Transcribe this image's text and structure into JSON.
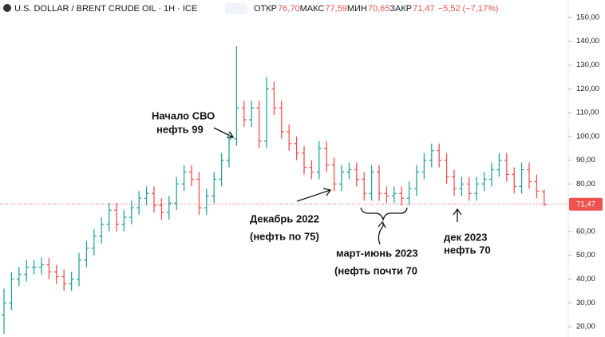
{
  "chart_data": {
    "type": "ohlc",
    "title": "U.S. DOLLAR / BRENT CRUDE OIL · 1Н · ICE",
    "header_fields": [
      {
        "label": "ОТКР",
        "value": "76,70"
      },
      {
        "label": "МАКС",
        "value": "77,59"
      },
      {
        "label": "МИН",
        "value": "70,65"
      },
      {
        "label": "ЗАКР",
        "value": "71,47"
      }
    ],
    "change": "−5,52 (−7,17%)",
    "up_color": "#26a69a",
    "down_color": "#ef5350",
    "last_label": "71,47",
    "ylim": [
      17,
      153
    ],
    "yticks": [
      {
        "value": 20,
        "label": "20,00"
      },
      {
        "value": 30,
        "label": "30,00"
      },
      {
        "value": 40,
        "label": "40,00"
      },
      {
        "value": 50,
        "label": "50,00"
      },
      {
        "value": 60,
        "label": "60,00"
      },
      {
        "value": 70,
        "label": "70,00"
      },
      {
        "value": 80,
        "label": "80,00"
      },
      {
        "value": 90,
        "label": "90,00"
      },
      {
        "value": 100,
        "label": "100,00"
      },
      {
        "value": 110,
        "label": "110,00"
      },
      {
        "value": 120,
        "label": "120,00"
      },
      {
        "value": 130,
        "label": "130,00"
      },
      {
        "value": 140,
        "label": "140,00"
      },
      {
        "value": 150,
        "label": "150,00"
      }
    ],
    "open": [
      25,
      30,
      40,
      42,
      45,
      45,
      46,
      43,
      41,
      38,
      40,
      48,
      53,
      58,
      63,
      69,
      63,
      66,
      70,
      74,
      76,
      71,
      68,
      72,
      80,
      85,
      82,
      70,
      75,
      82,
      90,
      99,
      112,
      107,
      112,
      98,
      120,
      112,
      102,
      97,
      93,
      87,
      85,
      95,
      88,
      80,
      85,
      86,
      82,
      76,
      85,
      76,
      75,
      76,
      74,
      78,
      85,
      90,
      94,
      90,
      83,
      78,
      80,
      76,
      80,
      82,
      86,
      90,
      84,
      79,
      86,
      81,
      76.7
    ],
    "high": [
      36,
      43,
      45,
      48,
      48,
      49,
      49,
      46,
      44,
      43,
      51,
      56,
      61,
      66,
      72,
      72,
      69,
      73,
      77,
      79,
      79,
      74,
      75,
      83,
      88,
      88,
      85,
      78,
      85,
      93,
      102,
      138,
      115,
      115,
      115,
      125,
      123,
      115,
      105,
      100,
      96,
      90,
      98,
      98,
      91,
      88,
      89,
      89,
      85,
      88,
      88,
      79,
      79,
      79,
      81,
      88,
      93,
      97,
      97,
      93,
      86,
      83,
      83,
      83,
      85,
      89,
      93,
      93,
      87,
      89,
      89,
      84,
      77.59
    ],
    "low": [
      17,
      27,
      37,
      39,
      42,
      42,
      40,
      38,
      35,
      35,
      37,
      45,
      50,
      55,
      60,
      60,
      60,
      63,
      67,
      71,
      68,
      65,
      65,
      69,
      77,
      79,
      67,
      67,
      72,
      79,
      87,
      96,
      104,
      104,
      95,
      95,
      109,
      99,
      94,
      90,
      84,
      82,
      82,
      85,
      77,
      77,
      82,
      79,
      73,
      73,
      73,
      72,
      72,
      71,
      71,
      75,
      82,
      87,
      87,
      80,
      75,
      75,
      73,
      73,
      77,
      79,
      83,
      81,
      76,
      76,
      78,
      74,
      70.65
    ],
    "close": [
      30,
      40,
      42,
      45,
      45,
      46,
      43,
      41,
      38,
      40,
      48,
      53,
      58,
      63,
      69,
      63,
      66,
      70,
      74,
      76,
      71,
      68,
      72,
      80,
      85,
      82,
      70,
      75,
      82,
      90,
      99,
      112,
      107,
      112,
      98,
      120,
      112,
      102,
      97,
      93,
      87,
      85,
      95,
      88,
      80,
      85,
      86,
      82,
      76,
      85,
      76,
      75,
      76,
      74,
      78,
      85,
      90,
      94,
      90,
      83,
      78,
      80,
      76,
      80,
      82,
      86,
      90,
      84,
      79,
      86,
      81,
      77,
      71.47
    ],
    "annotations": [
      {
        "lines": [
          "Начало СВО",
          "нефть 99"
        ]
      },
      {
        "lines": [
          "Декабрь 2022",
          "(нефть по 75)"
        ]
      },
      {
        "lines": [
          "март-июнь 2023",
          "(нефть почти 70"
        ]
      },
      {
        "lines": [
          "дек 2023",
          "нефть 70"
        ]
      }
    ]
  }
}
